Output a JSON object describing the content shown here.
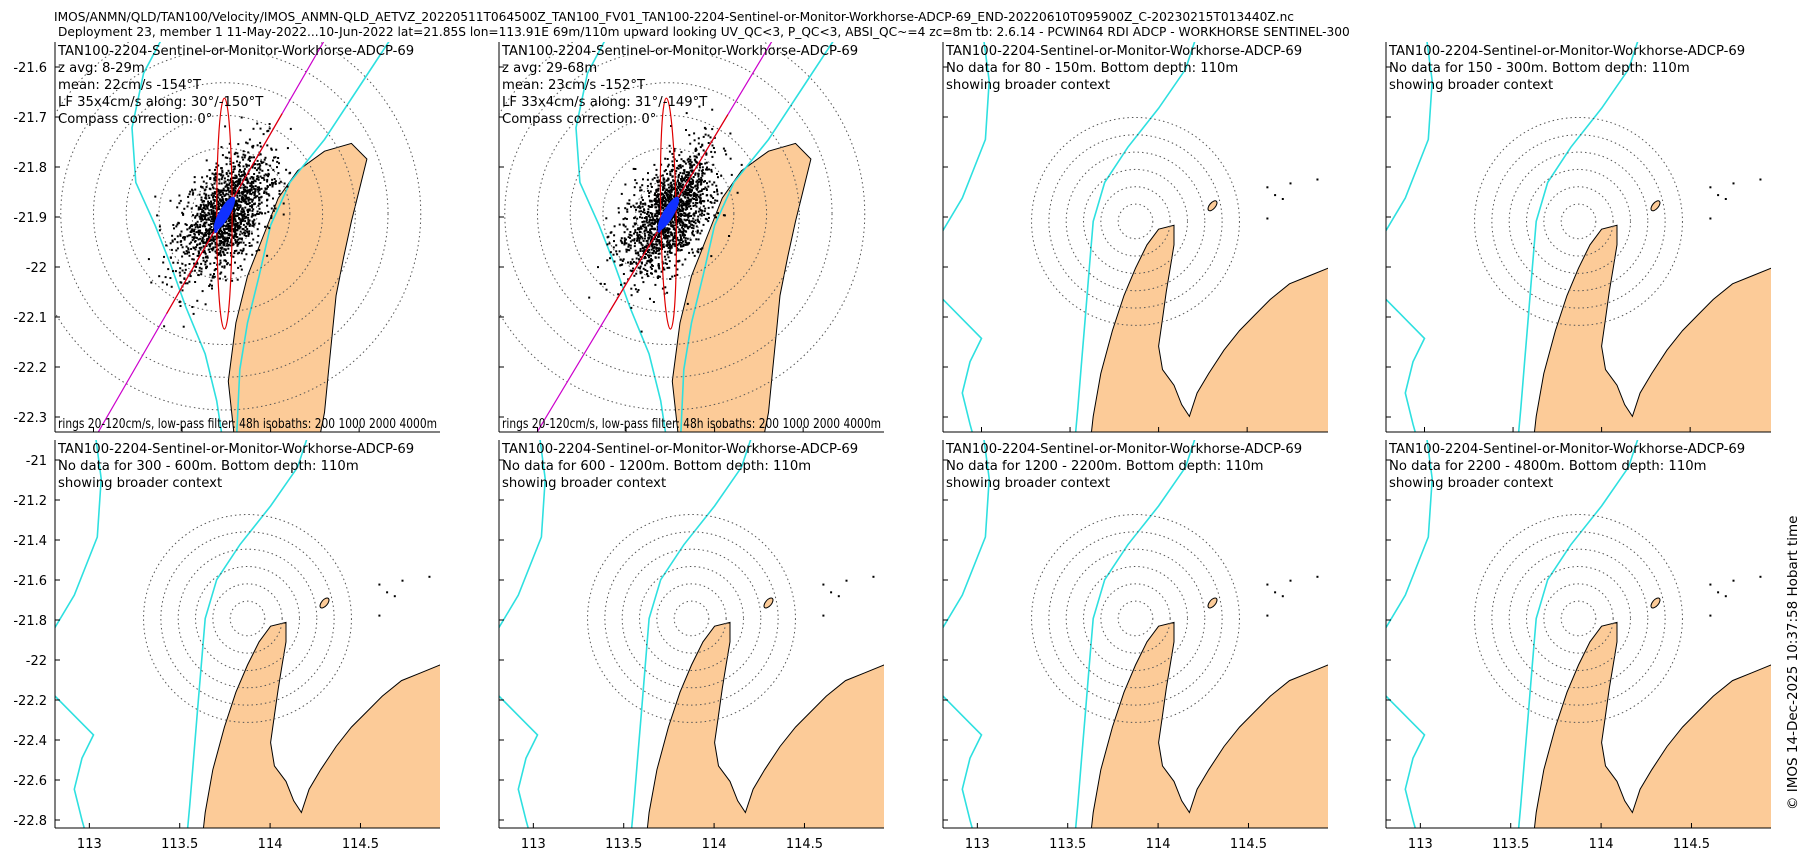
{
  "header": {
    "line1": "IMOS/ANMN/QLD/TAN100/Velocity/IMOS_ANMN-QLD_AETVZ_20220511T064500Z_TAN100_FV01_TAN100-2204-Sentinel-or-Monitor-Workhorse-ADCP-69_END-20220610T095900Z_C-20230215T013440Z.nc",
    "line2": "Deployment 23, member 1 11-May-2022...10-Jun-2022 lat=21.85S lon=113.91E 69m/110m upward looking UV_QC<3, P_QC<3, ABSI_QC~=4 zc=8m tb: 2.6.14 - PCWIN64 RDI ADCP - WORKHORSE SENTINEL-300"
  },
  "credit": "© IMOS 14-Dec-2025 10:37:58 Hobart time",
  "colors": {
    "land": "#FCCB98",
    "isobath": "#2EE0E0",
    "scatter": "#000000",
    "ellipse_outer": "#CC00CC",
    "ellipse_inner": "#E00000",
    "mean_arrow": "#1030FF",
    "rings": "#555555"
  },
  "chart_data": [
    {
      "type": "scatter",
      "row": "top",
      "title": "TAN100-2204-Sentinel-or-Monitor-Workhorse-ADCP-69",
      "info": [
        "z avg: 8-29m",
        "mean: 22cm/s -154°T",
        "LF 35x4cm/s along: 30°/-150°T",
        "Compass correction: 0°"
      ],
      "footer": "rings 20-120cm/s, low-pass filter: 48h isobaths: 200 1000 2000 4000m",
      "center": [
        113.91,
        -21.85
      ],
      "mean": {
        "speed_cms": 22,
        "dir_degT": -154
      },
      "lf_ellipse": {
        "major_cms": 35,
        "minor_cms": 4,
        "along_deg": 30
      },
      "yticks": [
        -21.6,
        -21.7,
        -21.8,
        -21.9,
        -22,
        -22.1,
        -22.2,
        -22.3
      ],
      "ytick_labels": [
        "-21.6",
        "-21.7",
        "-21.8",
        "-21.9",
        "-22",
        "-22.1",
        "-22.2",
        "-22.3"
      ],
      "ylim": [
        -22.33,
        -21.55
      ],
      "xlim": [
        113.19,
        114.88
      ],
      "rings_cms": [
        20,
        40,
        60,
        80,
        100,
        120
      ]
    },
    {
      "type": "scatter",
      "row": "top",
      "title": "TAN100-2204-Sentinel-or-Monitor-Workhorse-ADCP-69",
      "info": [
        "z avg: 29-68m",
        "mean: 23cm/s -152°T",
        "LF 33x4cm/s along: 31°/-149°T",
        "Compass correction: 0°"
      ],
      "footer": "rings 20-120cm/s, low-pass filter: 48h isobaths: 200 1000 2000 4000m",
      "center": [
        113.91,
        -21.85
      ],
      "mean": {
        "speed_cms": 23,
        "dir_degT": -152
      },
      "lf_ellipse": {
        "major_cms": 33,
        "minor_cms": 4,
        "along_deg": 31
      },
      "rings_cms": [
        20,
        40,
        60,
        80,
        100,
        120
      ]
    },
    {
      "type": "map",
      "row": "top",
      "title": "TAN100-2204-Sentinel-or-Monitor-Workhorse-ADCP-69",
      "info": [
        "No data for 80 - 150m. Bottom depth: 110m",
        "showing broader context"
      ],
      "rings_cms": [
        20,
        40,
        60,
        80,
        100,
        120
      ]
    },
    {
      "type": "map",
      "row": "top",
      "title": "TAN100-2204-Sentinel-or-Monitor-Workhorse-ADCP-69",
      "info": [
        "No data for 150 - 300m. Bottom depth: 110m",
        "showing broader context"
      ],
      "rings_cms": [
        20,
        40,
        60,
        80,
        100,
        120
      ]
    },
    {
      "type": "map",
      "row": "bottom",
      "title": "TAN100-2204-Sentinel-or-Monitor-Workhorse-ADCP-69",
      "info": [
        "No data for 300 - 600m. Bottom depth: 110m",
        "showing broader context"
      ],
      "yticks": [
        -21,
        -21.2,
        -21.4,
        -21.6,
        -21.8,
        -22,
        -22.2,
        -22.4,
        -22.6,
        -22.8
      ],
      "ytick_labels": [
        "-21",
        "-21.2",
        "-21.4",
        "-21.6",
        "-21.8",
        "-22",
        "-22.2",
        "-22.4",
        "-22.6",
        "-22.8"
      ],
      "ylim": [
        -22.84,
        -20.9
      ],
      "xlim": [
        112.81,
        114.94
      ],
      "xticks": [
        113,
        113.5,
        114,
        114.5
      ],
      "xtick_labels": [
        "113",
        "113.5",
        "114",
        "114.5"
      ],
      "rings_cms": [
        20,
        40,
        60,
        80,
        100,
        120
      ]
    },
    {
      "type": "map",
      "row": "bottom",
      "title": "TAN100-2204-Sentinel-or-Monitor-Workhorse-ADCP-69",
      "info": [
        "No data for 600 - 1200m. Bottom depth: 110m",
        "showing broader context"
      ],
      "xticks": [
        113,
        113.5,
        114,
        114.5
      ],
      "xtick_labels": [
        "113",
        "113.5",
        "114",
        "114.5"
      ],
      "rings_cms": [
        20,
        40,
        60,
        80,
        100,
        120
      ]
    },
    {
      "type": "map",
      "row": "bottom",
      "title": "TAN100-2204-Sentinel-or-Monitor-Workhorse-ADCP-69",
      "info": [
        "No data for 1200 - 2200m. Bottom depth: 110m",
        "showing broader context"
      ],
      "xticks": [
        113,
        113.5,
        114,
        114.5
      ],
      "xtick_labels": [
        "113",
        "113.5",
        "114",
        "114.5"
      ],
      "rings_cms": [
        20,
        40,
        60,
        80,
        100,
        120
      ]
    },
    {
      "type": "map",
      "row": "bottom",
      "title": "TAN100-2204-Sentinel-or-Monitor-Workhorse-ADCP-69",
      "info": [
        "No data for 2200 - 4800m. Bottom depth: 110m",
        "showing broader context"
      ],
      "xticks": [
        113,
        113.5,
        114,
        114.5
      ],
      "xtick_labels": [
        "113",
        "113.5",
        "114",
        "114.5"
      ],
      "rings_cms": [
        20,
        40,
        60,
        80,
        100,
        120
      ]
    }
  ]
}
